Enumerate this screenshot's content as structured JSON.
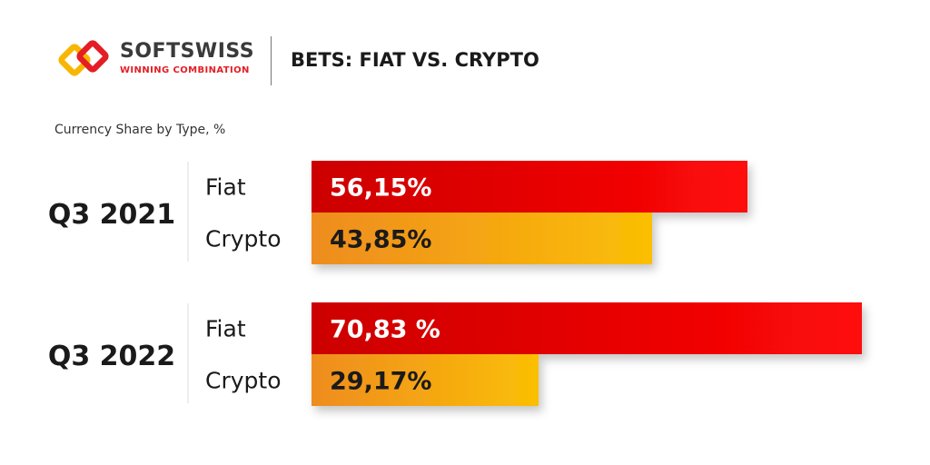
{
  "brand": {
    "name": "SOFTSWISS",
    "tagline": "WINNING COMBINATION",
    "logo_icon": "softswiss-logo-icon"
  },
  "header": {
    "title": "BETS: FIAT VS. CRYPTO"
  },
  "chart_data": {
    "type": "bar",
    "orientation": "horizontal",
    "title": "BETS: FIAT VS. CRYPTO",
    "subtitle": "Currency Share by Type, %",
    "groups": [
      {
        "name": "Q3 2021",
        "bars": [
          {
            "category": "Fiat",
            "value": 56.15,
            "label": "56,15%"
          },
          {
            "category": "Crypto",
            "value": 43.85,
            "label": "43,85%"
          }
        ]
      },
      {
        "name": "Q3 2022",
        "bars": [
          {
            "category": "Fiat",
            "value": 70.83,
            "label": "70,83 %"
          },
          {
            "category": "Crypto",
            "value": 29.17,
            "label": "29,17%"
          }
        ]
      }
    ],
    "xlim": [
      0,
      70.83
    ],
    "grid": false,
    "legend": "none",
    "colors": {
      "Fiat": [
        "#cc0000",
        "#ff0808"
      ],
      "Crypto": [
        "#ee8c20",
        "#fbbf04"
      ]
    }
  }
}
